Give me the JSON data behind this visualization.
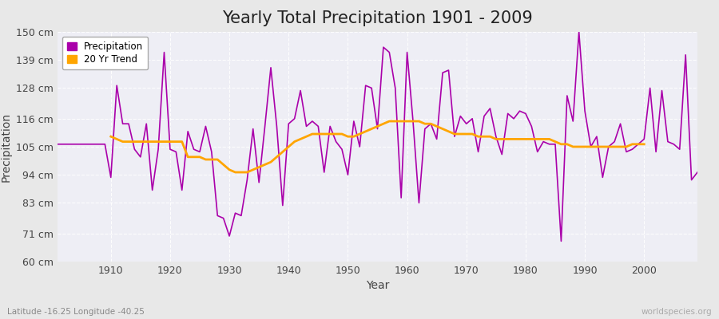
{
  "title": "Yearly Total Precipitation 1901 - 2009",
  "xlabel": "Year",
  "ylabel": "Precipitation",
  "subtitle_lat_lon": "Latitude -16.25 Longitude -40.25",
  "watermark": "worldspecies.org",
  "ylim": [
    60,
    150
  ],
  "yticks": [
    60,
    71,
    83,
    94,
    105,
    116,
    128,
    139,
    150
  ],
  "ytick_labels": [
    "60 cm",
    "71 cm",
    "83 cm",
    "94 cm",
    "105 cm",
    "116 cm",
    "128 cm",
    "139 cm",
    "150 cm"
  ],
  "years": [
    1901,
    1902,
    1903,
    1904,
    1905,
    1906,
    1907,
    1908,
    1909,
    1910,
    1911,
    1912,
    1913,
    1914,
    1915,
    1916,
    1917,
    1918,
    1919,
    1920,
    1921,
    1922,
    1923,
    1924,
    1925,
    1926,
    1927,
    1928,
    1929,
    1930,
    1931,
    1932,
    1933,
    1934,
    1935,
    1936,
    1937,
    1938,
    1939,
    1940,
    1941,
    1942,
    1943,
    1944,
    1945,
    1946,
    1947,
    1948,
    1949,
    1950,
    1951,
    1952,
    1953,
    1954,
    1955,
    1956,
    1957,
    1958,
    1959,
    1960,
    1961,
    1962,
    1963,
    1964,
    1965,
    1966,
    1967,
    1968,
    1969,
    1970,
    1971,
    1972,
    1973,
    1974,
    1975,
    1976,
    1977,
    1978,
    1979,
    1980,
    1981,
    1982,
    1983,
    1984,
    1985,
    1986,
    1987,
    1988,
    1989,
    1990,
    1991,
    1992,
    1993,
    1994,
    1995,
    1996,
    1997,
    1998,
    1999,
    2000,
    2001,
    2002,
    2003,
    2004,
    2005,
    2006,
    2007,
    2008,
    2009
  ],
  "precip": [
    106,
    106,
    106,
    106,
    106,
    106,
    106,
    106,
    106,
    93,
    129,
    114,
    114,
    104,
    101,
    114,
    88,
    104,
    142,
    104,
    103,
    88,
    111,
    104,
    103,
    113,
    103,
    78,
    77,
    70,
    79,
    78,
    92,
    112,
    91,
    113,
    136,
    113,
    82,
    114,
    116,
    127,
    113,
    115,
    113,
    95,
    113,
    107,
    104,
    94,
    115,
    105,
    129,
    128,
    112,
    144,
    142,
    128,
    85,
    142,
    115,
    83,
    112,
    114,
    108,
    134,
    135,
    109,
    117,
    114,
    116,
    103,
    117,
    120,
    109,
    102,
    118,
    116,
    119,
    118,
    113,
    103,
    107,
    106,
    106,
    68,
    125,
    115,
    150,
    119,
    105,
    109,
    93,
    105,
    107,
    114,
    103,
    104,
    106,
    108,
    128,
    103,
    127,
    107,
    106,
    104,
    141,
    92,
    95
  ],
  "trend_years": [
    1910,
    1911,
    1912,
    1913,
    1914,
    1915,
    1916,
    1917,
    1918,
    1919,
    1920,
    1921,
    1922,
    1923,
    1924,
    1925,
    1926,
    1927,
    1928,
    1929,
    1930,
    1931,
    1932,
    1933,
    1934,
    1935,
    1936,
    1937,
    1938,
    1939,
    1940,
    1941,
    1942,
    1943,
    1944,
    1945,
    1946,
    1947,
    1948,
    1949,
    1950,
    1951,
    1952,
    1953,
    1954,
    1955,
    1956,
    1957,
    1958,
    1959,
    1960,
    1961,
    1962,
    1963,
    1964,
    1965,
    1966,
    1967,
    1968,
    1969,
    1970,
    1971,
    1972,
    1973,
    1974,
    1975,
    1976,
    1977,
    1978,
    1979,
    1980,
    1981,
    1982,
    1983,
    1984,
    1985,
    1986,
    1987,
    1988,
    1989,
    1990,
    1991,
    1992,
    1993,
    1994,
    1995,
    1996,
    1997,
    1998,
    1999,
    2000
  ],
  "trend": [
    109,
    108,
    107,
    107,
    107,
    107,
    107,
    107,
    107,
    107,
    107,
    107,
    107,
    101,
    101,
    101,
    100,
    100,
    100,
    98,
    96,
    95,
    95,
    95,
    96,
    97,
    98,
    99,
    101,
    103,
    105,
    107,
    108,
    109,
    110,
    110,
    110,
    110,
    110,
    110,
    109,
    109,
    110,
    111,
    112,
    113,
    114,
    115,
    115,
    115,
    115,
    115,
    115,
    114,
    114,
    113,
    112,
    111,
    110,
    110,
    110,
    110,
    109,
    109,
    109,
    108,
    108,
    108,
    108,
    108,
    108,
    108,
    108,
    108,
    108,
    107,
    106,
    106,
    105,
    105,
    105,
    105,
    105,
    105,
    105,
    105,
    105,
    105,
    106,
    106,
    106
  ],
  "precip_color": "#AA00AA",
  "trend_color": "#FFA500",
  "bg_color": "#E8E8E8",
  "plot_bg_color": "#EEEEF5",
  "grid_color": "#FFFFFF",
  "title_fontsize": 15,
  "label_fontsize": 10,
  "tick_fontsize": 9,
  "xticks": [
    1910,
    1920,
    1930,
    1940,
    1950,
    1960,
    1970,
    1980,
    1990,
    2000
  ]
}
